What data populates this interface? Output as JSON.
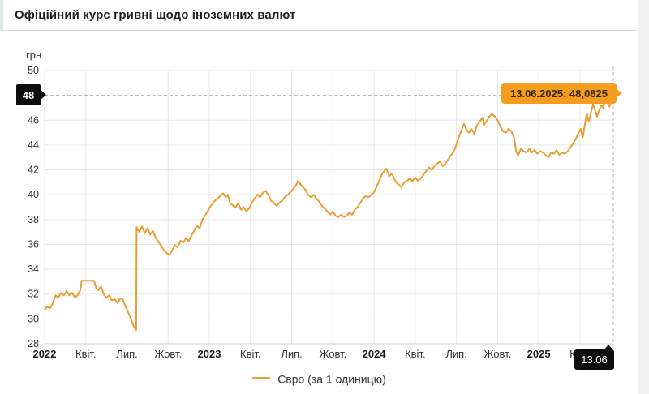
{
  "header": {
    "title": "Офіційний курс гривні щодо іноземних валют"
  },
  "chart": {
    "unit_label": "грн",
    "y_badge": "48",
    "x_badge": "13.06",
    "tooltip": "13.06.2025: 48,0825",
    "legend_label": "Євро (за 1 одиницю)",
    "colors": {
      "line": "#ED9C32",
      "tooltip_bg": "#F59D1E",
      "badge_bg": "#0e0e0e",
      "grid": "#e7e7e7",
      "axis": "#cfcfcf",
      "dashed": "#b0b0b0",
      "axis_text": "#333333"
    }
  },
  "chart_data": {
    "type": "line",
    "title": "Офіційний курс гривні щодо іноземних валют",
    "ylabel": "грн",
    "ylim": [
      28,
      50
    ],
    "yticks": [
      50,
      48,
      46,
      44,
      42,
      40,
      38,
      36,
      34,
      32,
      30,
      28
    ],
    "current_level": 48,
    "grid": true,
    "legend_position": "bottom-center",
    "x_unit": "months since 2022-01-01",
    "x_domain": [
      0,
      41.43
    ],
    "xticks": [
      {
        "t": 0,
        "label": "2022",
        "bold": true
      },
      {
        "t": 3,
        "label": "Квіт.",
        "bold": false
      },
      {
        "t": 6,
        "label": "Лип.",
        "bold": false
      },
      {
        "t": 9,
        "label": "Жовт.",
        "bold": false
      },
      {
        "t": 12,
        "label": "2023",
        "bold": true
      },
      {
        "t": 15,
        "label": "Квіт.",
        "bold": false
      },
      {
        "t": 18,
        "label": "Лип.",
        "bold": false
      },
      {
        "t": 21,
        "label": "Жовт.",
        "bold": false
      },
      {
        "t": 24,
        "label": "2024",
        "bold": true
      },
      {
        "t": 27,
        "label": "Квіт.",
        "bold": false
      },
      {
        "t": 30,
        "label": "Лип.",
        "bold": false
      },
      {
        "t": 33,
        "label": "Жовт.",
        "bold": false
      },
      {
        "t": 36,
        "label": "2025",
        "bold": true
      },
      {
        "t": 39,
        "label": "Квіт.",
        "bold": false
      }
    ],
    "annotation": {
      "date": "13.06.2025",
      "value": 48.0825,
      "label": "13.06.2025: 48,0825"
    },
    "series": [
      {
        "name": "Євро (за 1 одиницю)",
        "points": [
          [
            0,
            30.75
          ],
          [
            0.2,
            31.0
          ],
          [
            0.4,
            30.85
          ],
          [
            0.6,
            31.3
          ],
          [
            0.8,
            31.9
          ],
          [
            1.0,
            31.7
          ],
          [
            1.2,
            32.1
          ],
          [
            1.4,
            31.9
          ],
          [
            1.6,
            32.25
          ],
          [
            1.8,
            31.9
          ],
          [
            2.0,
            32.1
          ],
          [
            2.2,
            31.75
          ],
          [
            2.4,
            31.9
          ],
          [
            2.6,
            32.3
          ],
          [
            2.7,
            33.08
          ],
          [
            3.6,
            33.08
          ],
          [
            3.75,
            32.5
          ],
          [
            3.9,
            32.3
          ],
          [
            4.1,
            32.6
          ],
          [
            4.3,
            32.0
          ],
          [
            4.5,
            31.7
          ],
          [
            4.7,
            31.9
          ],
          [
            4.9,
            31.5
          ],
          [
            5.1,
            31.6
          ],
          [
            5.3,
            31.3
          ],
          [
            5.5,
            31.65
          ],
          [
            5.7,
            31.55
          ],
          [
            5.9,
            31.0
          ],
          [
            6.1,
            30.5
          ],
          [
            6.3,
            30.0
          ],
          [
            6.45,
            29.5
          ],
          [
            6.6,
            29.2
          ],
          [
            6.67,
            29.1
          ],
          [
            6.7,
            37.4
          ],
          [
            6.9,
            37.0
          ],
          [
            7.1,
            37.45
          ],
          [
            7.3,
            36.9
          ],
          [
            7.5,
            37.3
          ],
          [
            7.7,
            36.8
          ],
          [
            7.9,
            37.1
          ],
          [
            8.1,
            36.5
          ],
          [
            8.3,
            36.2
          ],
          [
            8.5,
            35.9
          ],
          [
            8.7,
            35.5
          ],
          [
            8.9,
            35.3
          ],
          [
            9.1,
            35.15
          ],
          [
            9.3,
            35.55
          ],
          [
            9.5,
            35.95
          ],
          [
            9.7,
            35.75
          ],
          [
            9.9,
            36.3
          ],
          [
            10.1,
            36.15
          ],
          [
            10.3,
            36.5
          ],
          [
            10.5,
            36.25
          ],
          [
            10.7,
            36.7
          ],
          [
            10.9,
            37.1
          ],
          [
            11.1,
            37.5
          ],
          [
            11.3,
            37.3
          ],
          [
            11.5,
            38.0
          ],
          [
            11.7,
            38.35
          ],
          [
            11.9,
            38.7
          ],
          [
            12.1,
            39.1
          ],
          [
            12.3,
            39.4
          ],
          [
            12.5,
            39.6
          ],
          [
            12.7,
            39.8
          ],
          [
            13.0,
            40.1
          ],
          [
            13.2,
            39.8
          ],
          [
            13.35,
            40.0
          ],
          [
            13.5,
            39.35
          ],
          [
            13.7,
            39.15
          ],
          [
            13.9,
            39.0
          ],
          [
            14.1,
            39.3
          ],
          [
            14.3,
            38.8
          ],
          [
            14.5,
            39.0
          ],
          [
            14.7,
            38.65
          ],
          [
            14.9,
            38.9
          ],
          [
            15.1,
            39.35
          ],
          [
            15.3,
            39.7
          ],
          [
            15.5,
            40.0
          ],
          [
            15.7,
            39.8
          ],
          [
            15.9,
            40.15
          ],
          [
            16.1,
            40.3
          ],
          [
            16.3,
            40.0
          ],
          [
            16.5,
            39.5
          ],
          [
            16.7,
            39.35
          ],
          [
            16.9,
            39.1
          ],
          [
            17.1,
            39.35
          ],
          [
            17.3,
            39.5
          ],
          [
            17.5,
            39.8
          ],
          [
            17.7,
            40.0
          ],
          [
            17.9,
            40.2
          ],
          [
            18.1,
            40.45
          ],
          [
            18.3,
            40.7
          ],
          [
            18.45,
            41.1
          ],
          [
            18.6,
            40.9
          ],
          [
            18.8,
            40.65
          ],
          [
            19.0,
            40.4
          ],
          [
            19.2,
            40.0
          ],
          [
            19.4,
            39.8
          ],
          [
            19.6,
            40.0
          ],
          [
            19.8,
            39.7
          ],
          [
            20.0,
            39.45
          ],
          [
            20.2,
            39.1
          ],
          [
            20.4,
            38.9
          ],
          [
            20.6,
            38.65
          ],
          [
            20.8,
            38.4
          ],
          [
            21.0,
            38.65
          ],
          [
            21.2,
            38.3
          ],
          [
            21.4,
            38.2
          ],
          [
            21.6,
            38.4
          ],
          [
            21.8,
            38.2
          ],
          [
            22.0,
            38.3
          ],
          [
            22.2,
            38.55
          ],
          [
            22.4,
            38.4
          ],
          [
            22.6,
            38.8
          ],
          [
            22.8,
            39.0
          ],
          [
            23.0,
            39.35
          ],
          [
            23.2,
            39.7
          ],
          [
            23.4,
            39.9
          ],
          [
            23.6,
            39.8
          ],
          [
            23.8,
            40.0
          ],
          [
            24.0,
            40.2
          ],
          [
            24.2,
            40.7
          ],
          [
            24.4,
            41.2
          ],
          [
            24.6,
            41.7
          ],
          [
            24.9,
            42.1
          ],
          [
            25.1,
            41.5
          ],
          [
            25.3,
            41.7
          ],
          [
            25.5,
            41.2
          ],
          [
            25.7,
            40.9
          ],
          [
            26.0,
            40.6
          ],
          [
            26.2,
            41.0
          ],
          [
            26.4,
            41.1
          ],
          [
            26.6,
            41.3
          ],
          [
            26.8,
            41.1
          ],
          [
            27.0,
            41.4
          ],
          [
            27.2,
            41.1
          ],
          [
            27.4,
            41.3
          ],
          [
            27.6,
            41.6
          ],
          [
            27.8,
            41.9
          ],
          [
            28.0,
            42.2
          ],
          [
            28.2,
            42.0
          ],
          [
            28.4,
            42.3
          ],
          [
            28.6,
            42.5
          ],
          [
            28.8,
            42.7
          ],
          [
            29.0,
            42.3
          ],
          [
            29.2,
            42.5
          ],
          [
            29.5,
            43.0
          ],
          [
            29.7,
            43.3
          ],
          [
            29.9,
            43.7
          ],
          [
            30.1,
            44.4
          ],
          [
            30.3,
            45.0
          ],
          [
            30.55,
            45.7
          ],
          [
            30.7,
            45.3
          ],
          [
            30.9,
            45.0
          ],
          [
            31.1,
            45.3
          ],
          [
            31.3,
            44.9
          ],
          [
            31.5,
            45.6
          ],
          [
            31.7,
            45.9
          ],
          [
            31.9,
            46.2
          ],
          [
            32.0,
            45.6
          ],
          [
            32.2,
            45.9
          ],
          [
            32.4,
            46.3
          ],
          [
            32.6,
            46.5
          ],
          [
            32.8,
            46.3
          ],
          [
            33.0,
            46.0
          ],
          [
            33.2,
            45.5
          ],
          [
            33.4,
            45.1
          ],
          [
            33.6,
            45.0
          ],
          [
            33.8,
            45.3
          ],
          [
            34.0,
            45.1
          ],
          [
            34.2,
            44.6
          ],
          [
            34.35,
            43.5
          ],
          [
            34.5,
            43.15
          ],
          [
            34.7,
            43.7
          ],
          [
            34.9,
            43.5
          ],
          [
            35.1,
            43.4
          ],
          [
            35.3,
            43.7
          ],
          [
            35.5,
            43.4
          ],
          [
            35.7,
            43.6
          ],
          [
            35.9,
            43.3
          ],
          [
            36.1,
            43.5
          ],
          [
            36.3,
            43.4
          ],
          [
            36.5,
            43.2
          ],
          [
            36.7,
            43.0
          ],
          [
            36.9,
            43.4
          ],
          [
            37.1,
            43.3
          ],
          [
            37.3,
            43.6
          ],
          [
            37.5,
            43.2
          ],
          [
            37.7,
            43.4
          ],
          [
            37.9,
            43.3
          ],
          [
            38.1,
            43.5
          ],
          [
            38.3,
            43.8
          ],
          [
            38.5,
            44.1
          ],
          [
            38.7,
            44.5
          ],
          [
            38.9,
            45.0
          ],
          [
            39.05,
            45.3
          ],
          [
            39.2,
            44.6
          ],
          [
            39.35,
            45.6
          ],
          [
            39.5,
            46.5
          ],
          [
            39.65,
            45.9
          ],
          [
            39.8,
            46.6
          ],
          [
            39.95,
            47.3
          ],
          [
            40.1,
            46.8
          ],
          [
            40.25,
            46.3
          ],
          [
            40.4,
            46.8
          ],
          [
            40.55,
            47.2
          ],
          [
            40.7,
            47.0
          ],
          [
            40.85,
            47.8
          ],
          [
            41.0,
            47.4
          ],
          [
            41.15,
            47.1
          ],
          [
            41.3,
            47.6
          ],
          [
            41.43,
            48.0825
          ]
        ]
      }
    ]
  }
}
